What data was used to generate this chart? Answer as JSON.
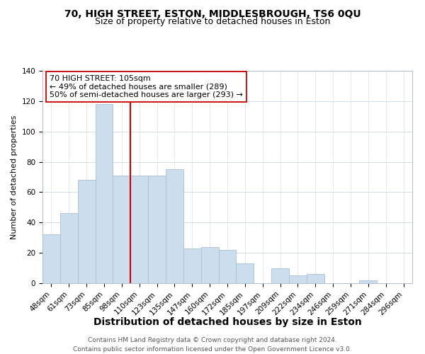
{
  "title": "70, HIGH STREET, ESTON, MIDDLESBROUGH, TS6 0QU",
  "subtitle": "Size of property relative to detached houses in Eston",
  "xlabel": "Distribution of detached houses by size in Eston",
  "ylabel": "Number of detached properties",
  "bar_labels": [
    "48sqm",
    "61sqm",
    "73sqm",
    "85sqm",
    "98sqm",
    "110sqm",
    "123sqm",
    "135sqm",
    "147sqm",
    "160sqm",
    "172sqm",
    "185sqm",
    "197sqm",
    "209sqm",
    "222sqm",
    "234sqm",
    "246sqm",
    "259sqm",
    "271sqm",
    "284sqm",
    "296sqm"
  ],
  "bar_values": [
    32,
    46,
    68,
    118,
    71,
    71,
    71,
    75,
    23,
    24,
    22,
    13,
    0,
    10,
    5,
    6,
    0,
    0,
    2,
    0,
    0
  ],
  "bar_color": "#ccdded",
  "bar_edge_color": "#a8c0d4",
  "vline_x": 4.5,
  "vline_color": "#cc0000",
  "annotation_text": "70 HIGH STREET: 105sqm\n← 49% of detached houses are smaller (289)\n50% of semi-detached houses are larger (293) →",
  "annotation_box_color": "#ffffff",
  "annotation_box_edge": "#cc0000",
  "ylim": [
    0,
    140
  ],
  "yticks": [
    0,
    20,
    40,
    60,
    80,
    100,
    120,
    140
  ],
  "footer_line1": "Contains HM Land Registry data © Crown copyright and database right 2024.",
  "footer_line2": "Contains public sector information licensed under the Open Government Licence v3.0.",
  "title_fontsize": 10,
  "subtitle_fontsize": 9,
  "xlabel_fontsize": 10,
  "ylabel_fontsize": 8,
  "tick_fontsize": 7.5,
  "annotation_fontsize": 8,
  "footer_fontsize": 6.5
}
